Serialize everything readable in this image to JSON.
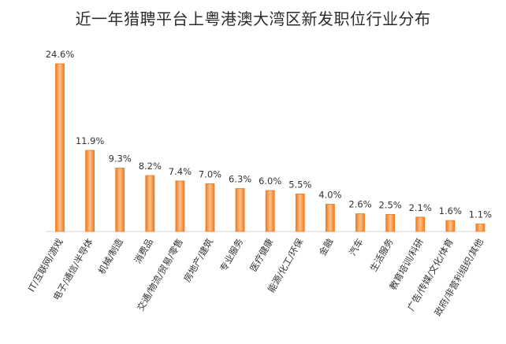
{
  "chart_data": {
    "type": "bar",
    "title": "近一年猎聘平台上粤港澳大湾区新发职位行业分布",
    "xlabel": "",
    "ylabel": "",
    "value_suffix": "%",
    "ylim": [
      0,
      26
    ],
    "grid": false,
    "bar_color": "#ee7a1e",
    "bar_color_light": "#ffc18a",
    "categories": [
      "IT/互联网/游戏",
      "电子/通信/半导体",
      "机械/制造",
      "消费品",
      "交通/物流/贸易/零售",
      "房地产/建筑",
      "专业服务",
      "医疗健康",
      "能源/化工/环保",
      "金融",
      "汽车",
      "生活服务",
      "教育培训/科研",
      "广告/传媒/文化/体育",
      "政府/非营利组织/其他"
    ],
    "values": [
      24.6,
      11.9,
      9.3,
      8.2,
      7.4,
      7.0,
      6.3,
      6.0,
      5.5,
      4.0,
      2.6,
      2.5,
      2.1,
      1.6,
      1.1
    ]
  }
}
